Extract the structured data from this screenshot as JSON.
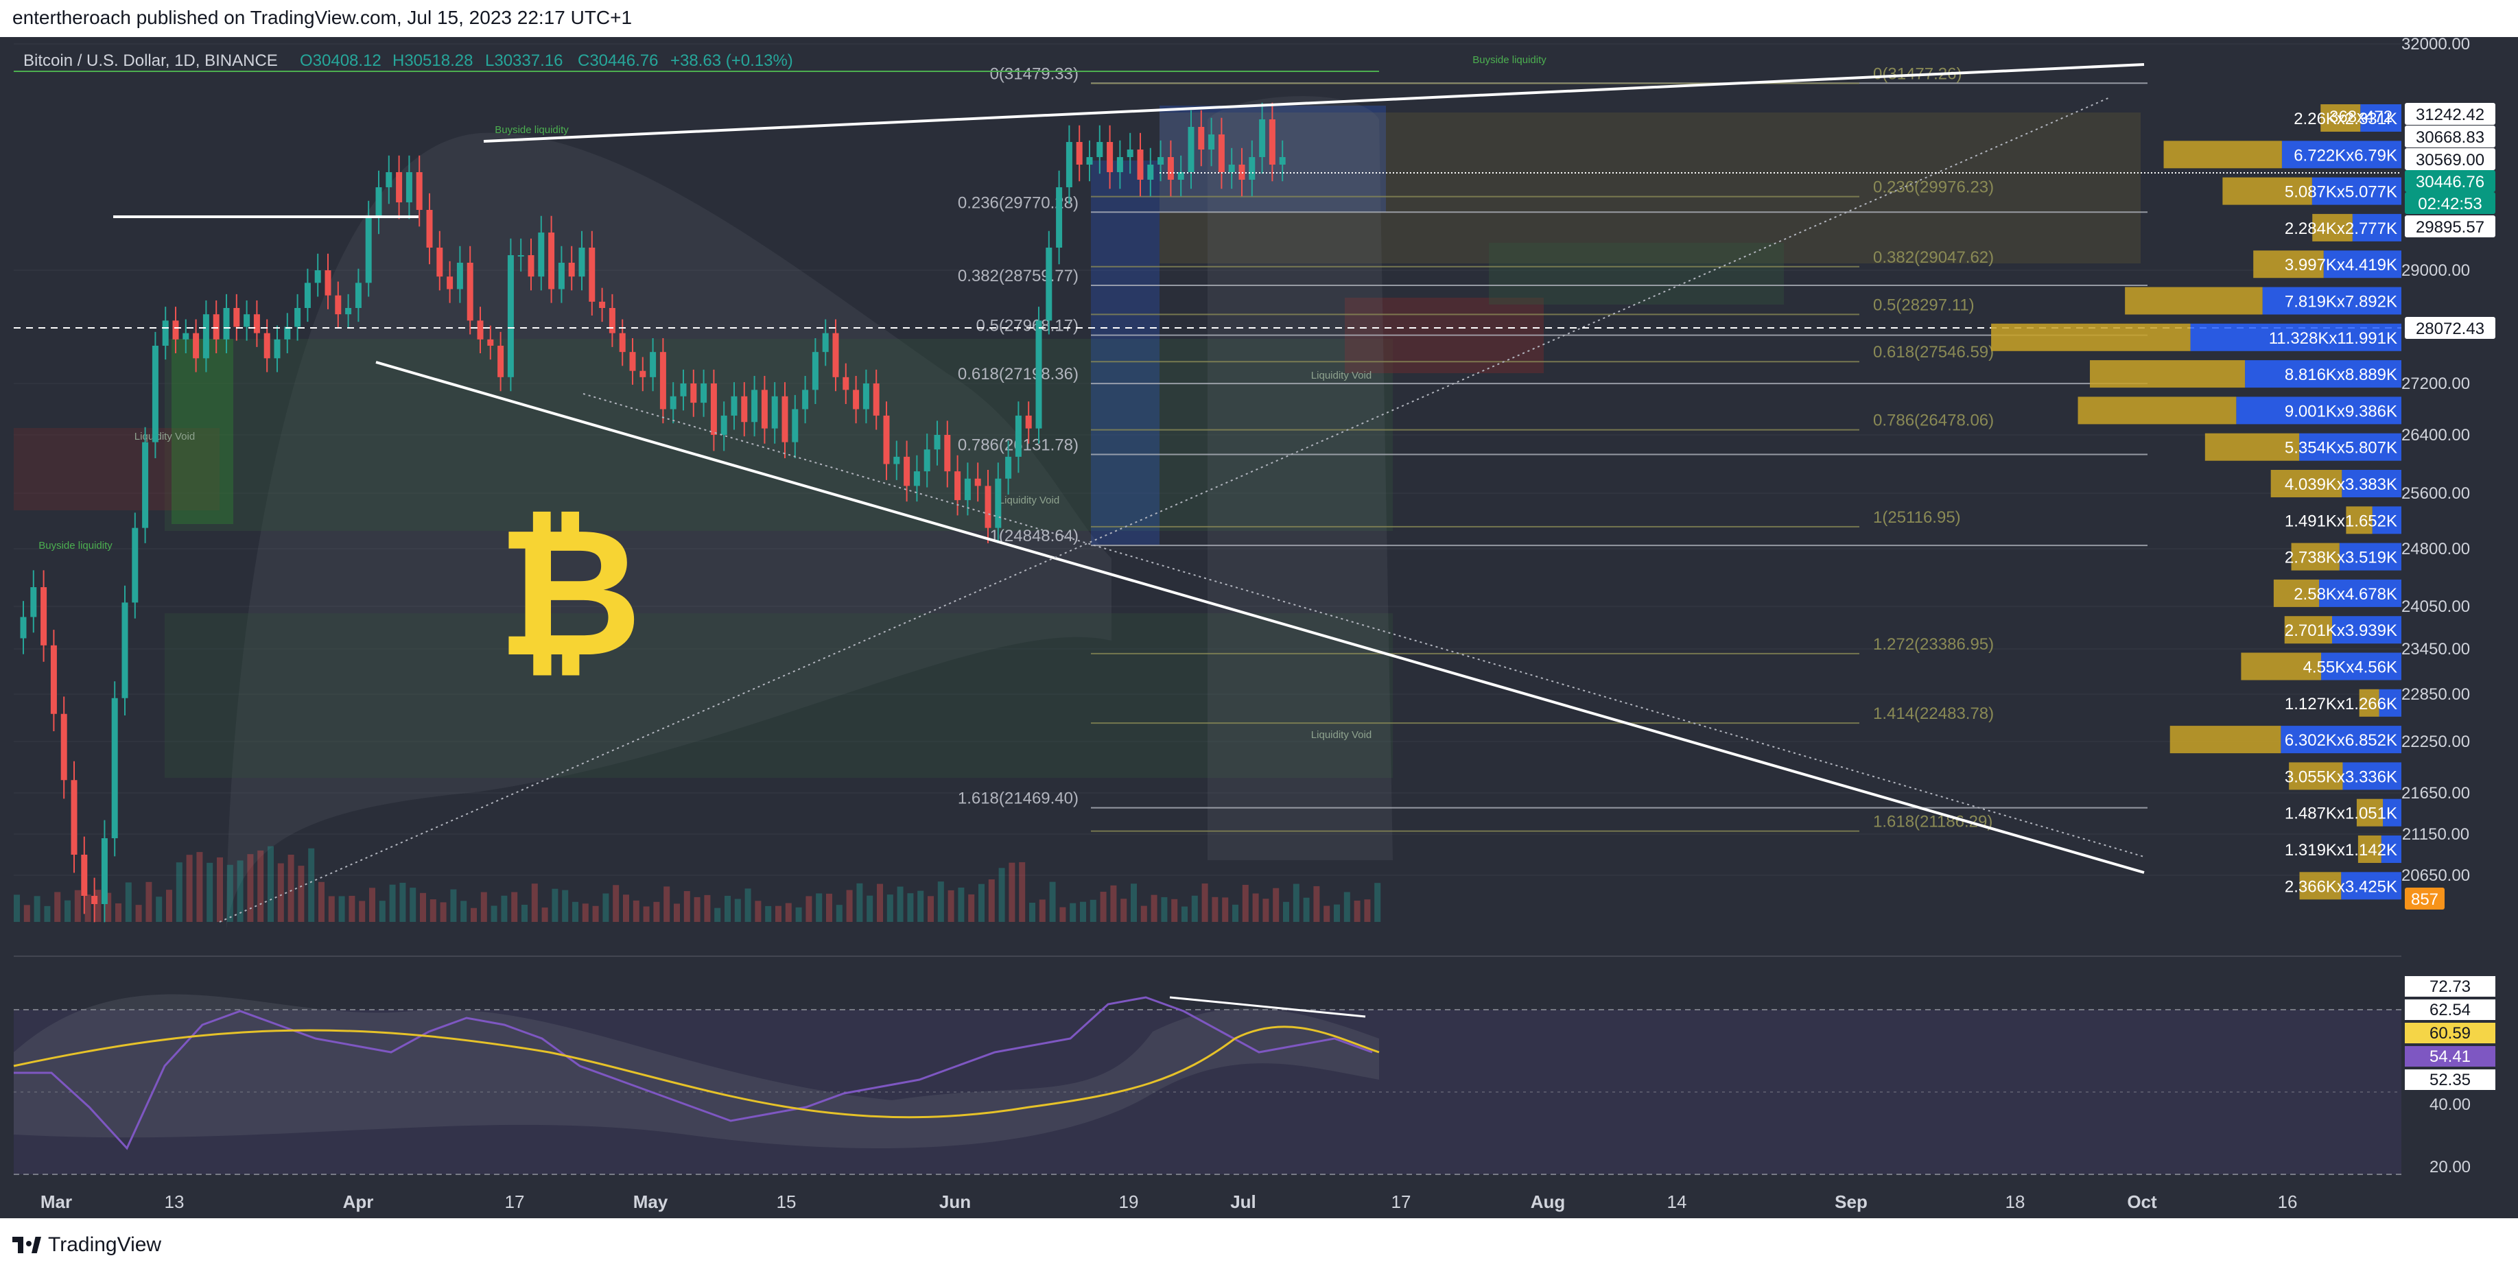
{
  "header": {
    "published": "entertheroach published on TradingView.com, Jul 15, 2023 22:17 UTC+1"
  },
  "legend": {
    "symbol": "Bitcoin / U.S. Dollar, 1D, BINANCE",
    "o": "O30408.12",
    "h": "H30518.28",
    "l": "L30337.16",
    "c": "C30446.76",
    "chg": "+38.63 (+0.13%)"
  },
  "colors": {
    "background": "#2a2e39",
    "up": "#26a69a",
    "down": "#ef5350",
    "fib_left": "#b2b5be",
    "fib_right": "#8a8a55",
    "vp_gold": "#c9a227",
    "vp_blue": "#2962ff",
    "rsi": "#7e57c2",
    "rsi_ma": "#e6c229",
    "bitcoin": "#f7d433"
  },
  "chart_data": {
    "type": "line",
    "title": "Bitcoin / U.S. Dollar, 1D, BINANCE",
    "x": [
      "Mar",
      "13",
      "Apr",
      "17",
      "May",
      "15",
      "Jun",
      "19",
      "Jul",
      "17",
      "Aug",
      "14",
      "Sep",
      "18",
      "Oct",
      "16"
    ],
    "price_axis": {
      "ticks": [
        32000,
        29000,
        27200,
        26400,
        25600,
        24800,
        24050,
        23450,
        22850,
        22250,
        21650,
        21150,
        20650
      ],
      "labels": [
        "32000.00",
        "29000.00",
        "27200.00",
        "26400.00",
        "25600.00",
        "24800.00",
        "24050.00",
        "23450.00",
        "22850.00",
        "22250.00",
        "21650.00",
        "21150.00",
        "20650.00"
      ]
    },
    "price_tags": [
      {
        "value": "368x472",
        "style": "plain"
      },
      {
        "value": "31242.42",
        "style": "light"
      },
      {
        "value": "30668.83",
        "style": "light"
      },
      {
        "value": "30569.00",
        "style": "light"
      },
      {
        "value": "30446.76",
        "style": "current"
      },
      {
        "value": "02:42:53",
        "style": "current"
      },
      {
        "value": "29895.57",
        "style": "light"
      },
      {
        "value": "28072.43",
        "style": "light"
      },
      {
        "value": "857",
        "style": "orange"
      }
    ],
    "fib_left": [
      {
        "label": "0(31479.33)",
        "value": 31479.33
      },
      {
        "label": "0.236(29770.28)",
        "value": 29770.28
      },
      {
        "label": "0.382(28759.77)",
        "value": 28759.77
      },
      {
        "label": "0.5(27968.17)",
        "value": 27968.17
      },
      {
        "label": "0.618(27198.36)",
        "value": 27198.36
      },
      {
        "label": "0.786(26131.78)",
        "value": 26131.78
      },
      {
        "label": "1(24848.64)",
        "value": 24848.64
      },
      {
        "label": "1.618(21469.40)",
        "value": 21469.4
      }
    ],
    "fib_right": [
      {
        "label": "0(31477.26)",
        "value": 31477.26
      },
      {
        "label": "0.236(29976.23)",
        "value": 29976.23
      },
      {
        "label": "0.382(29047.62)",
        "value": 29047.62
      },
      {
        "label": "0.5(28297.11)",
        "value": 28297.11
      },
      {
        "label": "0.618(27546.59)",
        "value": 27546.59
      },
      {
        "label": "0.786(26478.06)",
        "value": 26478.06
      },
      {
        "label": "1(25116.95)",
        "value": 25116.95
      },
      {
        "label": "1.272(23386.95)",
        "value": 23386.95
      },
      {
        "label": "1.414(22483.78)",
        "value": 22483.78
      },
      {
        "label": "1.618(21186.29)",
        "value": 21186.29
      }
    ],
    "volume_profile": [
      {
        "label": "2.26Kx2.331K",
        "buy": 2.26,
        "sell": 2.331
      },
      {
        "label": "6.722Kx6.79K",
        "buy": 6.722,
        "sell": 6.79
      },
      {
        "label": "5.087Kx5.077K",
        "buy": 5.087,
        "sell": 5.077
      },
      {
        "label": "2.284Kx2.777K",
        "buy": 2.284,
        "sell": 2.777
      },
      {
        "label": "3.997Kx4.419K",
        "buy": 3.997,
        "sell": 4.419
      },
      {
        "label": "7.819Kx7.892K",
        "buy": 7.819,
        "sell": 7.892
      },
      {
        "label": "11.328Kx11.991K",
        "buy": 11.328,
        "sell": 11.991
      },
      {
        "label": "8.816Kx8.889K",
        "buy": 8.816,
        "sell": 8.889
      },
      {
        "label": "9.001Kx9.386K",
        "buy": 9.001,
        "sell": 9.386
      },
      {
        "label": "5.354Kx5.807K",
        "buy": 5.354,
        "sell": 5.807
      },
      {
        "label": "4.039Kx3.383K",
        "buy": 4.039,
        "sell": 3.383
      },
      {
        "label": "1.491Kx1.652K",
        "buy": 1.491,
        "sell": 1.652
      },
      {
        "label": "2.738Kx3.519K",
        "buy": 2.738,
        "sell": 3.519
      },
      {
        "label": "2.58Kx4.678K",
        "buy": 2.58,
        "sell": 4.678
      },
      {
        "label": "2.701Kx3.939K",
        "buy": 2.701,
        "sell": 3.939
      },
      {
        "label": "4.55Kx4.56K",
        "buy": 4.55,
        "sell": 4.56
      },
      {
        "label": "1.127Kx1.266K",
        "buy": 1.127,
        "sell": 1.266
      },
      {
        "label": "6.302Kx6.852K",
        "buy": 6.302,
        "sell": 6.852
      },
      {
        "label": "3.055Kx3.336K",
        "buy": 3.055,
        "sell": 3.336
      },
      {
        "label": "1.487Kx1.051K",
        "buy": 1.487,
        "sell": 1.051
      },
      {
        "label": "1.319Kx1.142K",
        "buy": 1.319,
        "sell": 1.142
      },
      {
        "label": "2.366Kx3.425K",
        "buy": 2.366,
        "sell": 3.425
      }
    ],
    "annotations": [
      "Buyside liquidity",
      "Buyside liquidity",
      "Buyside liquidity",
      "Liquidity Void",
      "Liquidity Void",
      "Liquidity Void",
      "Liquidity Void"
    ],
    "rsi": {
      "ticks": [
        "40.00",
        "20.00"
      ],
      "tags": [
        {
          "value": "72.73",
          "style": "light"
        },
        {
          "value": "62.54",
          "style": "light"
        },
        {
          "value": "60.59",
          "style": "yellow"
        },
        {
          "value": "54.41",
          "style": "purple"
        },
        {
          "value": "52.35",
          "style": "light"
        }
      ]
    }
  },
  "footer": {
    "brand": "TradingView"
  }
}
